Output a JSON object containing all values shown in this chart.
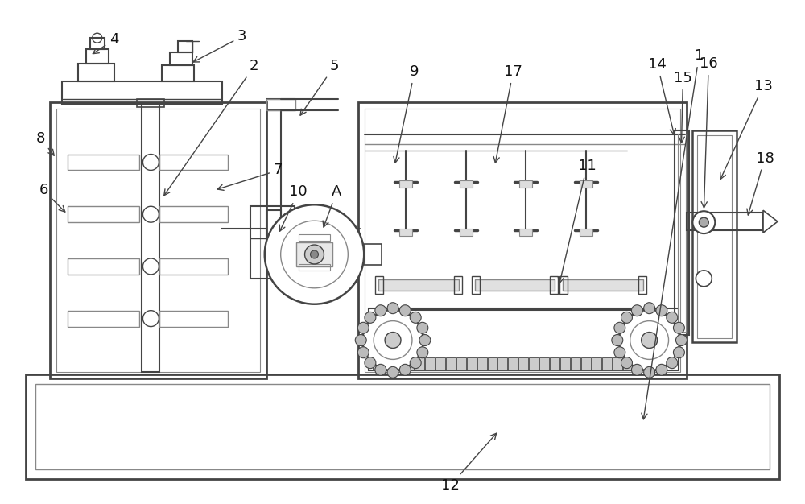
{
  "bg_color": "#ffffff",
  "lc": "#444444",
  "lc2": "#888888",
  "fig_width": 10.0,
  "fig_height": 6.26,
  "dpi": 100
}
